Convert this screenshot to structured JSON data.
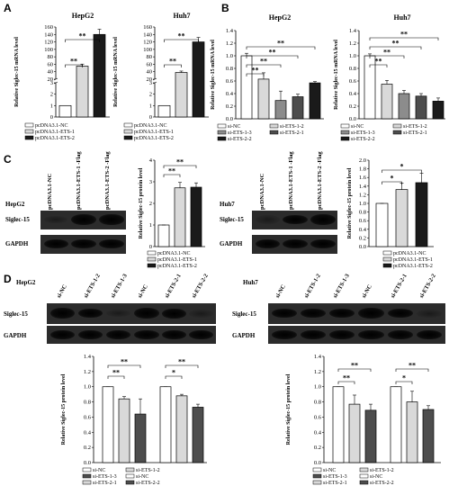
{
  "panels": {
    "A": "A",
    "B": "B",
    "C": "C",
    "D": "D"
  },
  "chart_data": [
    {
      "id": "A1",
      "type": "bar",
      "title": "HepG2",
      "ylabel": "Relative Siglec-15 mRNA level",
      "yticks": [
        "0",
        "1",
        "2",
        "3",
        "20",
        "40",
        "60",
        "80",
        "100",
        "120",
        "140",
        "160"
      ],
      "broken_axis": true,
      "series": [
        {
          "values": [
            1,
            55,
            140
          ]
        }
      ],
      "legend": [
        "pcDNA3.1-NC",
        "pcDNA3.1-ETS-1",
        "pcDNA3.1-ETS-2"
      ],
      "sig": [
        {
          "label": "**"
        },
        {
          "label": "**"
        }
      ]
    },
    {
      "id": "A2",
      "type": "bar",
      "title": "Huh7",
      "ylabel": "Relative Siglec-15 mRNA level",
      "yticks": [
        "0",
        "1",
        "2",
        "3",
        "20",
        "40",
        "60",
        "80",
        "100",
        "120",
        "140",
        "160"
      ],
      "broken_axis": true,
      "series": [
        {
          "values": [
            1,
            38,
            120
          ]
        }
      ],
      "legend": [
        "pcDNA3.1-NC",
        "pcDNA3.1-ETS-1",
        "pcDNA3.1-ETS-2"
      ],
      "sig": [
        {
          "label": "**"
        },
        {
          "label": "**"
        }
      ]
    },
    {
      "id": "B1",
      "type": "bar",
      "title": "HepG2",
      "ylabel": "Relative Siglec-15 mRNA level",
      "ylim": [
        0,
        1.4
      ],
      "yticks": [
        "0.0",
        "0.2",
        "0.4",
        "0.6",
        "0.8",
        "1.0",
        "1.2",
        "1.4"
      ],
      "values": [
        1.0,
        0.63,
        0.29,
        0.35,
        0.57
      ],
      "legend": [
        "si-NC",
        "si-ETS-1-2",
        "si-ETS-1-3",
        "si-ETS-2-1",
        "si-ETS-2-2"
      ],
      "sig": [
        "**",
        "**",
        "**",
        "**"
      ]
    },
    {
      "id": "B2",
      "type": "bar",
      "title": "Huh7",
      "ylabel": "Relative Siglec-15 mRNA level",
      "ylim": [
        0,
        1.4
      ],
      "yticks": [
        "0.0",
        "0.2",
        "0.4",
        "0.6",
        "0.8",
        "1.0",
        "1.2",
        "1.4"
      ],
      "values": [
        1.0,
        0.55,
        0.4,
        0.36,
        0.28
      ],
      "legend": [
        "si-NC",
        "si-ETS-1-2",
        "si-ETS-1-3",
        "si-ETS-2-1",
        "si-ETS-2-2"
      ],
      "sig": [
        "**",
        "**",
        "**",
        "**"
      ]
    },
    {
      "id": "C1",
      "type": "bar",
      "ylabel": "Relative Siglec-15 protein level",
      "ylim": [
        0,
        4
      ],
      "yticks": [
        "0",
        "1",
        "2",
        "3",
        "4"
      ],
      "values": [
        1.0,
        2.72,
        2.75
      ],
      "legend": [
        "pcDNA3.1-NC",
        "pcDNA3.1-ETS-1",
        "pcDNA3.1-ETS-2"
      ],
      "sig": [
        "**",
        "**"
      ]
    },
    {
      "id": "C2",
      "type": "bar",
      "ylabel": "Relative Siglec-15 protein level",
      "ylim": [
        0.0,
        2.0
      ],
      "yticks": [
        "0.0",
        "0.2",
        "0.4",
        "0.6",
        "0.8",
        "1.0",
        "1.2",
        "1.4",
        "1.6",
        "1.8",
        "2.0"
      ],
      "values": [
        1.0,
        1.32,
        1.48
      ],
      "legend": [
        "pcDNA3.1-NC",
        "pcDNA3.1-ETS-1",
        "pcDNA3.1-ETS-2"
      ],
      "sig": [
        "*",
        "*"
      ]
    },
    {
      "id": "D1",
      "type": "bar",
      "ylabel": "Relative Siglec-15 protein level",
      "ylim": [
        0.0,
        1.4
      ],
      "yticks": [
        "0.0",
        "0.2",
        "0.4",
        "0.6",
        "0.8",
        "1.0",
        "1.2",
        "1.4"
      ],
      "values": [
        1.0,
        0.84,
        0.64,
        1.0,
        0.88,
        0.73
      ],
      "legend": [
        "si-NC",
        "si-ETS-1-2",
        "si-ETS-1-3",
        "si-NC",
        "si-ETS-2-1",
        "si-ETS-2-2"
      ],
      "sig": [
        "**",
        "**",
        "*",
        "**"
      ]
    },
    {
      "id": "D2",
      "type": "bar",
      "ylabel": "Relative Siglec-15 protein level",
      "ylim": [
        0.0,
        1.4
      ],
      "yticks": [
        "0.0",
        "0.2",
        "0.4",
        "0.6",
        "0.8",
        "1.0",
        "1.2",
        "1.4"
      ],
      "values": [
        1.0,
        0.77,
        0.69,
        1.0,
        0.8,
        0.7
      ],
      "legend": [
        "si-NC",
        "si-ETS-1-2",
        "si-ETS-1-3",
        "si-NC",
        "si-ETS-2-1",
        "si-ETS-2-2"
      ],
      "sig": [
        "**",
        "**",
        "*",
        "**"
      ]
    }
  ],
  "blots": {
    "C": {
      "hepg2": {
        "cell": "HepG2",
        "lanes": [
          "pcDNA3.1-NC",
          "pcDNA3.1-ETS-1 -Flag",
          "pcDNA3.1-ETS-2 -Flag"
        ],
        "rows": [
          "Siglec-15",
          "GAPDH"
        ]
      },
      "huh7": {
        "cell": "Huh7",
        "lanes": [
          "pcDNA3.1-NC",
          "pcDNA3.1-ETS-1 -Flag",
          "pcDNA3.1-ETS-2 -Flag"
        ],
        "rows": [
          "Siglec-15",
          "GAPDH"
        ]
      }
    },
    "D": {
      "hepg2": {
        "cell": "HepG2",
        "lanes": [
          "si-NC",
          "si-ETS-1-2",
          "si-ETS-1-3",
          "si-NC",
          "si-ETS-2-1",
          "si-ETS-2-2"
        ],
        "rows": [
          "Siglec-15",
          "GAPDH"
        ]
      },
      "huh7": {
        "cell": "Huh7",
        "lanes": [
          "si-NC",
          "si-ETS-1-2",
          "si-ETS-1-3",
          "si-NC",
          "si-ETS-2-1",
          "si-ETS-2-2"
        ],
        "rows": [
          "Siglec-15",
          "GAPDH"
        ]
      }
    }
  },
  "colors": {
    "white": "#ffffff",
    "light": "#d9d9d9",
    "mid": "#8c8c8c",
    "dark": "#4d4d4d",
    "black": "#1a1a1a"
  }
}
